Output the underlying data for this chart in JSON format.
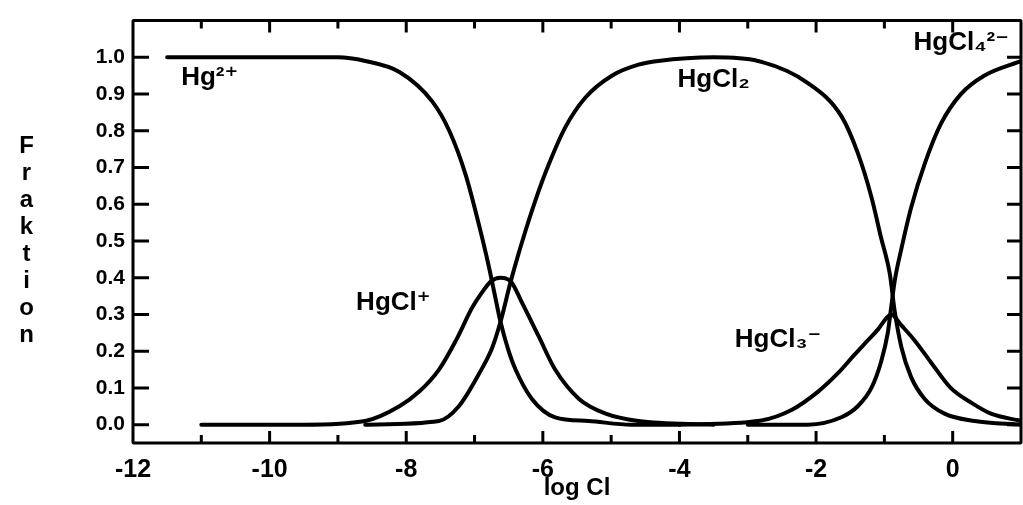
{
  "chart_data": {
    "type": "line",
    "xlabel": "log Cl",
    "ylabel": "Fraktion",
    "xlim": [
      -12,
      1
    ],
    "ylim": [
      -0.05,
      1.1
    ],
    "xticks": [
      -12,
      {
        "value": -11,
        "label": null
      },
      -10,
      {
        "value": -9,
        "label": null
      },
      -8,
      {
        "value": -7,
        "label": null
      },
      -6,
      {
        "value": -5,
        "label": null
      },
      -4,
      {
        "value": -3,
        "label": null
      },
      -2,
      {
        "value": -1,
        "label": null
      },
      0
    ],
    "yticks": [
      {
        "value": 0,
        "label": "0.0"
      },
      0.1,
      0.2,
      0.3,
      0.4,
      0.5,
      0.6,
      0.7,
      0.8,
      0.9,
      {
        "value": 1,
        "label": "1.0"
      }
    ],
    "legend": false,
    "marker": "none",
    "line_style": "solid",
    "series": [
      {
        "name": "Hg²⁺",
        "color": "#000000",
        "x": [
          -11.5,
          -10,
          -9,
          -8.6,
          -8.1,
          -7.62,
          -7.37,
          -7.13,
          -6.93,
          -6.79,
          -6.7,
          -6.62,
          -6.5,
          -6.4,
          -6.16,
          -5.82,
          -5.33,
          -4.7,
          -4.0
        ],
        "values": [
          1.0,
          1.0,
          1.0,
          0.99,
          0.96,
          0.88,
          0.8,
          0.68,
          0.54,
          0.43,
          0.35,
          0.28,
          0.2,
          0.15,
          0.07,
          0.02,
          0.01,
          0,
          0
        ]
      },
      {
        "name": "HgCl⁺",
        "color": "#000000",
        "x": [
          -11.0,
          -9.5,
          -8.6,
          -8.1,
          -7.81,
          -7.52,
          -7.27,
          -7.03,
          -6.89,
          -6.76,
          -6.62,
          -6.47,
          -6.3,
          -6.06,
          -5.82,
          -5.47,
          -5.08,
          -4.6,
          -3.5
        ],
        "values": [
          0,
          0,
          0.01,
          0.05,
          0.09,
          0.15,
          0.23,
          0.32,
          0.36,
          0.39,
          0.4,
          0.39,
          0.33,
          0.24,
          0.15,
          0.07,
          0.03,
          0.01,
          0
        ]
      },
      {
        "name": "HgCl₂",
        "color": "#000000",
        "x": [
          -8.6,
          -7.52,
          -7.23,
          -6.93,
          -6.74,
          -6.62,
          -6.47,
          -6.3,
          -6.11,
          -5.91,
          -5.67,
          -5.38,
          -4.99,
          -4.6,
          -4.31,
          -3.5,
          -2.85,
          -2.12,
          -1.63,
          -1.39,
          -1.19,
          -1.05,
          -0.92,
          -0.85,
          -0.75,
          -0.61,
          -0.41,
          -0.12,
          0.32,
          1
        ],
        "values": [
          0,
          0.01,
          0.05,
          0.14,
          0.21,
          0.28,
          0.39,
          0.5,
          0.61,
          0.71,
          0.81,
          0.89,
          0.95,
          0.98,
          0.99,
          1.0,
          0.99,
          0.93,
          0.84,
          0.74,
          0.62,
          0.51,
          0.41,
          0.31,
          0.21,
          0.13,
          0.07,
          0.03,
          0.01,
          0
        ]
      },
      {
        "name": "HgCl₃⁻",
        "color": "#000000",
        "x": [
          -4.0,
          -2.85,
          -2.36,
          -1.97,
          -1.68,
          -1.44,
          -1.24,
          -1.09,
          -0.97,
          -0.9,
          -0.75,
          -0.56,
          -0.32,
          -0.03,
          0.27,
          0.56,
          1
        ],
        "values": [
          0,
          0.01,
          0.04,
          0.09,
          0.14,
          0.19,
          0.23,
          0.26,
          0.29,
          0.3,
          0.27,
          0.23,
          0.17,
          0.1,
          0.06,
          0.03,
          0.01
        ]
      },
      {
        "name": "HgCl₄²⁻",
        "color": "#000000",
        "x": [
          -3.0,
          -2.12,
          -1.63,
          -1.39,
          -1.19,
          -1.05,
          -0.95,
          -0.9,
          -0.85,
          -0.75,
          -0.61,
          -0.41,
          -0.17,
          0.12,
          0.46,
          1
        ],
        "values": [
          0,
          0,
          0.02,
          0.05,
          0.1,
          0.17,
          0.25,
          0.32,
          0.39,
          0.48,
          0.59,
          0.71,
          0.82,
          0.9,
          0.95,
          0.99
        ]
      }
    ]
  }
}
